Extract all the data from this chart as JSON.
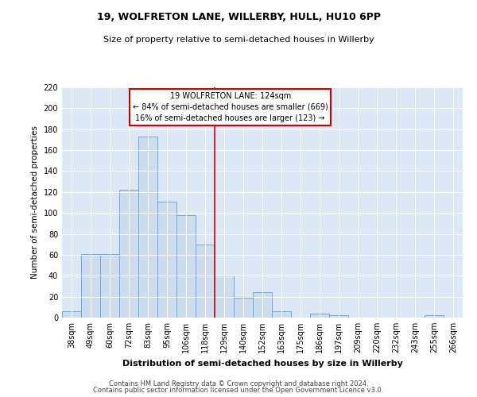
{
  "title": "19, WOLFRETON LANE, WILLERBY, HULL, HU10 6PP",
  "subtitle": "Size of property relative to semi-detached houses in Willerby",
  "xlabel": "Distribution of semi-detached houses by size in Willerby",
  "ylabel": "Number of semi-detached properties",
  "categories": [
    "38sqm",
    "49sqm",
    "60sqm",
    "72sqm",
    "83sqm",
    "95sqm",
    "106sqm",
    "118sqm",
    "129sqm",
    "140sqm",
    "152sqm",
    "163sqm",
    "175sqm",
    "186sqm",
    "197sqm",
    "209sqm",
    "220sqm",
    "232sqm",
    "243sqm",
    "255sqm",
    "266sqm"
  ],
  "values": [
    6,
    61,
    61,
    122,
    173,
    111,
    98,
    70,
    40,
    19,
    24,
    6,
    0,
    4,
    2,
    0,
    0,
    0,
    0,
    2,
    0
  ],
  "bar_color": "#cddcee",
  "bar_edge_color": "#6aaad4",
  "vline_color": "#cc0000",
  "vline_x": 7.5,
  "annotation_label": "19 WOLFRETON LANE: 124sqm",
  "pct_smaller": 84,
  "pct_larger": 16,
  "n_smaller": 669,
  "n_larger": 123,
  "annotation_box_color": "#ffffff",
  "annotation_box_edge_color": "#cc0000",
  "ylim": [
    0,
    220
  ],
  "yticks": [
    0,
    20,
    40,
    60,
    80,
    100,
    120,
    140,
    160,
    180,
    200,
    220
  ],
  "background_color": "#dce8f5",
  "title_fontsize": 9,
  "subtitle_fontsize": 8,
  "xlabel_fontsize": 8,
  "ylabel_fontsize": 7.5,
  "tick_fontsize": 7,
  "footer1": "Contains HM Land Registry data © Crown copyright and database right 2024.",
  "footer2": "Contains public sector information licensed under the Open Government Licence v3.0.",
  "footer_fontsize": 6
}
